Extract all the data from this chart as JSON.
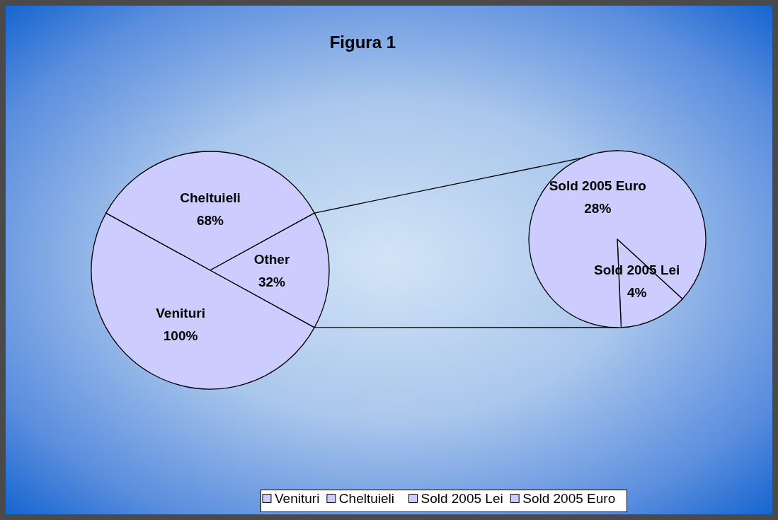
{
  "chart_data": [
    {
      "type": "pie",
      "title": "Figura 1",
      "categories": [
        "Venituri",
        "Cheltuieli",
        "Other"
      ],
      "values": [
        100,
        68,
        32
      ],
      "value_labels": [
        "100%",
        "68%",
        "32%"
      ],
      "colors": [
        "#ccccff",
        "#ccccff",
        "#ccccff"
      ],
      "legend": "bottom"
    },
    {
      "type": "pie",
      "categories": [
        "Sold 2005 Lei",
        "Sold 2005 Euro"
      ],
      "values": [
        4,
        28
      ],
      "value_labels": [
        "4%",
        "28%"
      ],
      "colors": [
        "#ccccff",
        "#ccccff"
      ],
      "legend": "bottom"
    }
  ]
}
